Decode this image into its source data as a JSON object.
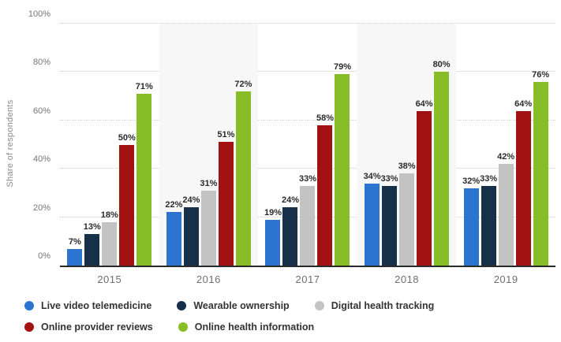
{
  "chart_data": {
    "type": "bar",
    "title": "",
    "xlabel": "",
    "ylabel": "Share of respondents",
    "ylim": [
      0,
      100
    ],
    "yticks": [
      0,
      20,
      40,
      60,
      80,
      100
    ],
    "ytick_suffix": "%",
    "grid": "horizontal-dotted",
    "gridline_color": "#cfcfcf",
    "band_color": "#f7f7f7",
    "banded_categories": [
      "2016",
      "2018"
    ],
    "legend_position": "bottom",
    "value_label_suffix": "%",
    "categories": [
      "2015",
      "2016",
      "2017",
      "2018",
      "2019"
    ],
    "series": [
      {
        "name": "Live video telemedicine",
        "color": "#2b75d1",
        "values": [
          7,
          22,
          19,
          34,
          32
        ]
      },
      {
        "name": "Wearable ownership",
        "color": "#16304a",
        "values": [
          13,
          24,
          24,
          33,
          33
        ]
      },
      {
        "name": "Digital health tracking",
        "color": "#c3c3c3",
        "values": [
          18,
          31,
          33,
          38,
          42
        ]
      },
      {
        "name": "Online provider reviews",
        "color": "#a31213",
        "values": [
          50,
          51,
          58,
          64,
          64
        ]
      },
      {
        "name": "Online health information",
        "color": "#87bd27",
        "values": [
          71,
          72,
          79,
          80,
          76
        ]
      }
    ]
  }
}
